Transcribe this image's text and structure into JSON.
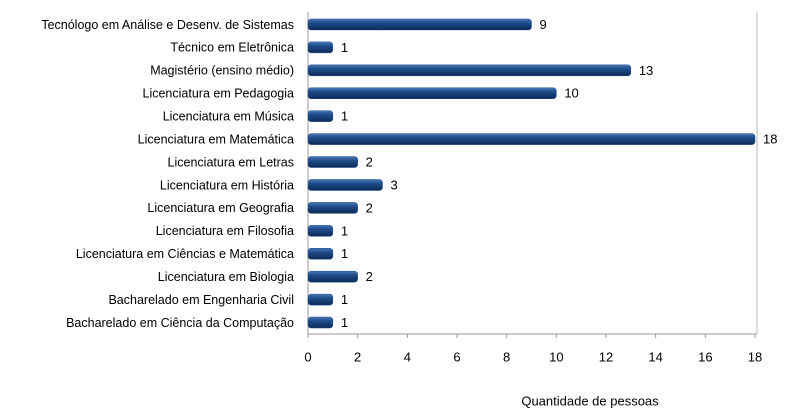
{
  "chart_data": {
    "type": "bar",
    "orientation": "horizontal",
    "categories": [
      "Tecnólogo em Análise e Desenv. de Sistemas",
      "Técnico em Eletrônica",
      "Magistério (ensino médio)",
      "Licenciatura em Pedagogia",
      "Licenciatura em Música",
      "Licenciatura em Matemática",
      "Licenciatura em Letras",
      "Licenciatura em História",
      "Licenciatura em Geografia",
      "Licenciatura em Filosofia",
      "Licenciatura em Ciências e Matemática",
      "Licenciatura em Biologia",
      "Bacharelado em Engenharia Civil",
      "Bacharelado em Ciência da Computação"
    ],
    "values": [
      9,
      1,
      13,
      10,
      1,
      18,
      2,
      3,
      2,
      1,
      1,
      2,
      1,
      1
    ],
    "color": "#1f4e8c",
    "xlabel": "Quantidade de pessoas",
    "xlim": [
      0,
      18
    ],
    "xticks": [
      0,
      2,
      4,
      6,
      8,
      10,
      12,
      14,
      16,
      18
    ],
    "grid": false
  }
}
